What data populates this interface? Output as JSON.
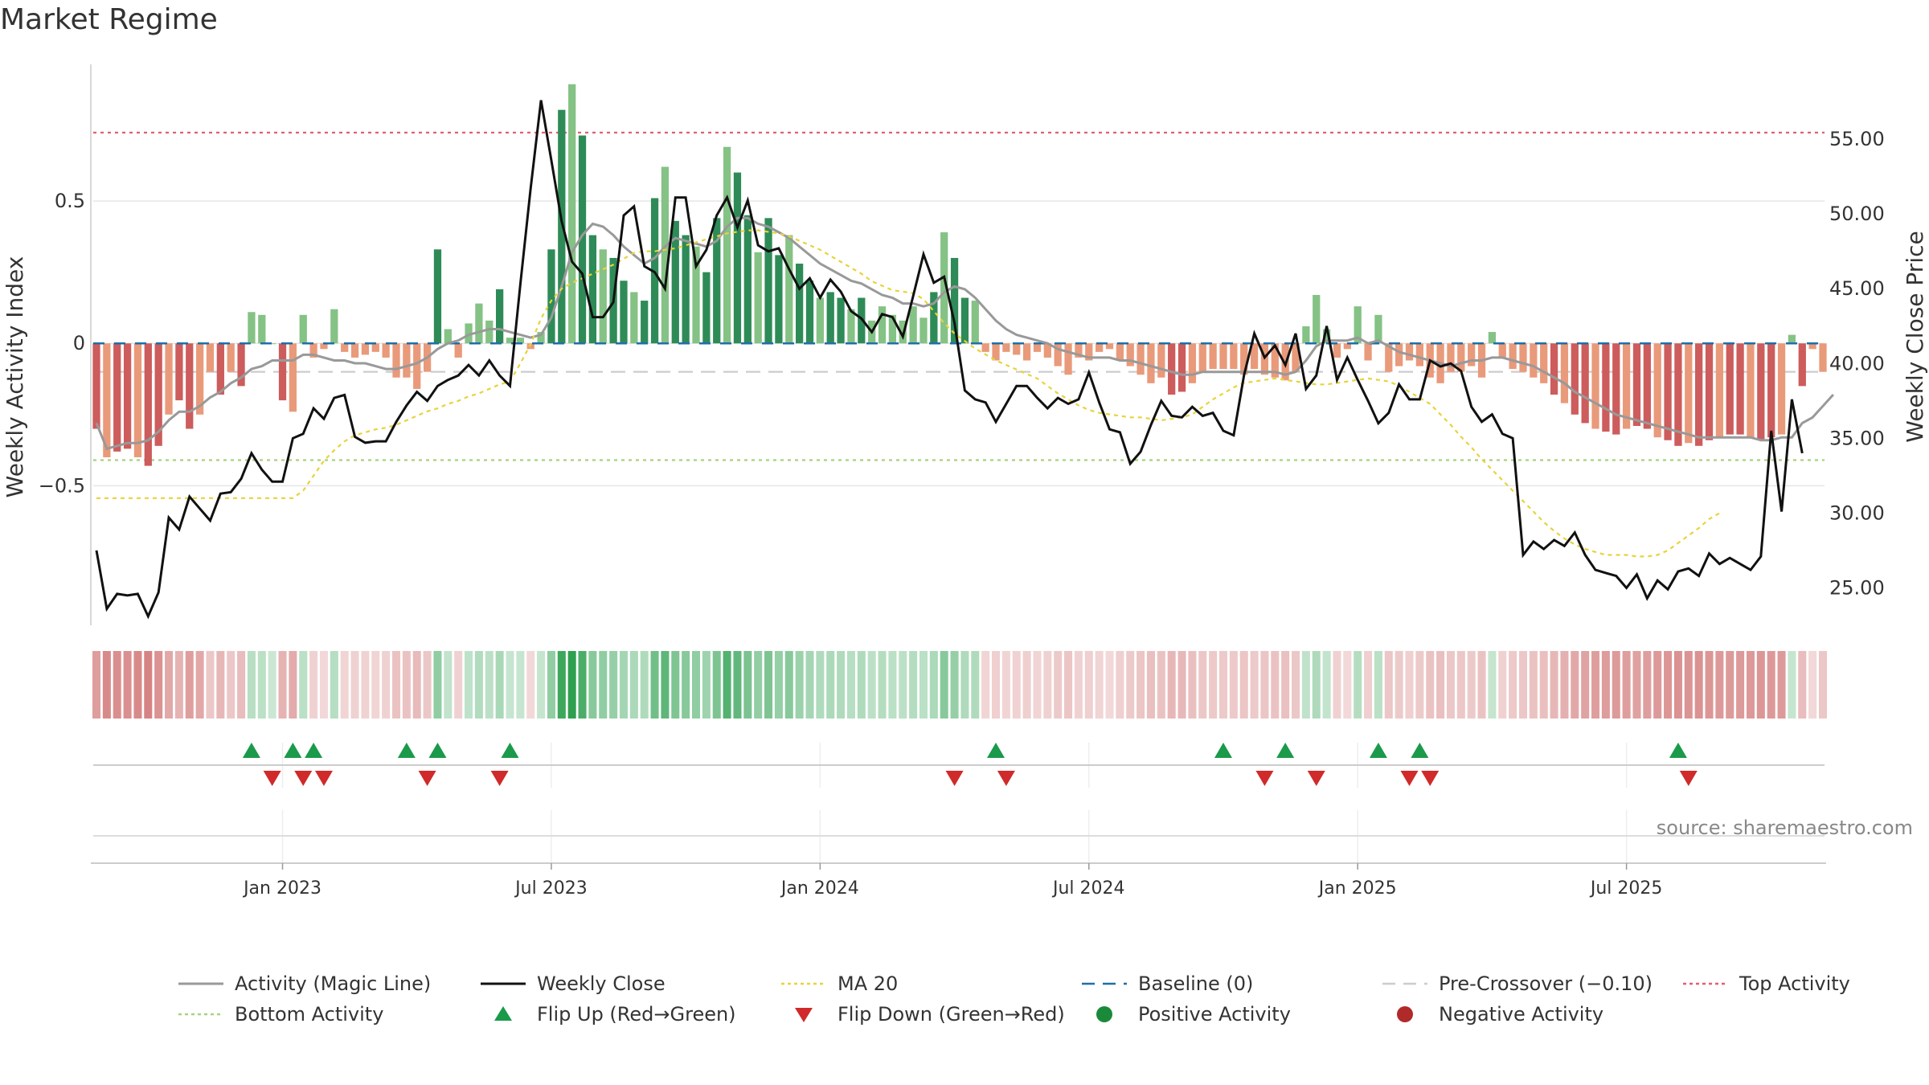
{
  "page": {
    "title": "Market Regime"
  },
  "chart_data": {
    "type": "bar",
    "title": "Market Regime",
    "source_note": "source: sharemaestro.com",
    "x_tick_labels": [
      "Jan 2023",
      "Jul 2023",
      "Jan 2024",
      "Jul 2024",
      "Jan 2025",
      "Jul 2025"
    ],
    "x_tick_weeks": [
      18,
      44,
      70,
      96,
      122,
      148
    ],
    "week_start": "2022-08-29",
    "left_axis": {
      "label": "Weekly Activity Index",
      "ticks": [
        "0.5",
        "0",
        "−0.5"
      ],
      "tick_values": [
        0.5,
        0,
        -0.5
      ],
      "range": [
        -0.99,
        0.98
      ]
    },
    "right_axis": {
      "label": "Weekly Close Price",
      "ticks": [
        "25.00",
        "30.00",
        "35.00",
        "40.00",
        "45.00",
        "50.00",
        "55.00"
      ],
      "tick_values": [
        25,
        30,
        35,
        40,
        45,
        50,
        55
      ],
      "range": [
        22.5,
        60.0
      ]
    },
    "reference_lines": {
      "baseline": 0,
      "pre_crossover": -0.1,
      "top_activity": 0.74,
      "bottom_activity": -0.41
    },
    "activity": [
      -0.3,
      -0.4,
      -0.38,
      -0.37,
      -0.4,
      -0.43,
      -0.36,
      -0.25,
      -0.2,
      -0.3,
      -0.25,
      -0.1,
      -0.18,
      -0.1,
      -0.15,
      0.11,
      0.1,
      0.0,
      -0.2,
      -0.24,
      0.1,
      -0.05,
      -0.02,
      0.12,
      -0.03,
      -0.05,
      -0.04,
      -0.03,
      -0.05,
      -0.12,
      -0.12,
      -0.16,
      -0.1,
      0.33,
      0.05,
      -0.05,
      0.07,
      0.14,
      0.08,
      0.19,
      0.02,
      0.02,
      -0.02,
      0.04,
      0.33,
      0.82,
      0.91,
      0.73,
      0.38,
      0.33,
      0.3,
      0.22,
      0.18,
      0.15,
      0.51,
      0.62,
      0.43,
      0.38,
      0.34,
      0.25,
      0.44,
      0.69,
      0.6,
      0.45,
      0.32,
      0.44,
      0.31,
      0.38,
      0.28,
      0.22,
      0.16,
      0.18,
      0.16,
      0.12,
      0.16,
      0.08,
      0.13,
      0.1,
      0.08,
      0.13,
      0.09,
      0.18,
      0.39,
      0.3,
      0.16,
      0.15,
      -0.03,
      -0.06,
      -0.03,
      -0.04,
      -0.06,
      -0.03,
      -0.05,
      -0.08,
      -0.11,
      -0.05,
      -0.06,
      -0.03,
      -0.02,
      -0.06,
      -0.08,
      -0.11,
      -0.14,
      -0.12,
      -0.18,
      -0.17,
      -0.14,
      -0.1,
      -0.09,
      -0.09,
      -0.09,
      -0.11,
      -0.09,
      -0.11,
      -0.12,
      -0.13,
      -0.1,
      0.06,
      0.17,
      0.05,
      -0.05,
      -0.02,
      0.13,
      -0.06,
      0.1,
      -0.1,
      -0.08,
      -0.06,
      -0.08,
      -0.12,
      -0.14,
      -0.1,
      -0.1,
      -0.08,
      -0.12,
      0.04,
      -0.05,
      -0.09,
      -0.1,
      -0.12,
      -0.14,
      -0.18,
      -0.21,
      -0.25,
      -0.28,
      -0.3,
      -0.31,
      -0.32,
      -0.3,
      -0.29,
      -0.3,
      -0.33,
      -0.34,
      -0.36,
      -0.35,
      -0.36,
      -0.34,
      -0.33,
      -0.32,
      -0.32,
      -0.33,
      -0.34,
      -0.33,
      -0.32,
      0.03,
      -0.15,
      -0.02,
      -0.1
    ],
    "magic_line": [
      -0.28,
      -0.37,
      -0.36,
      -0.35,
      -0.35,
      -0.34,
      -0.31,
      -0.27,
      -0.24,
      -0.24,
      -0.22,
      -0.19,
      -0.17,
      -0.14,
      -0.12,
      -0.09,
      -0.08,
      -0.06,
      -0.06,
      -0.06,
      -0.04,
      -0.04,
      -0.05,
      -0.06,
      -0.06,
      -0.07,
      -0.07,
      -0.08,
      -0.09,
      -0.09,
      -0.08,
      -0.07,
      -0.05,
      -0.02,
      0.0,
      0.01,
      0.03,
      0.04,
      0.05,
      0.05,
      0.04,
      0.03,
      0.02,
      0.03,
      0.09,
      0.2,
      0.32,
      0.38,
      0.42,
      0.41,
      0.38,
      0.34,
      0.31,
      0.28,
      0.3,
      0.34,
      0.37,
      0.36,
      0.35,
      0.34,
      0.36,
      0.41,
      0.44,
      0.44,
      0.42,
      0.41,
      0.39,
      0.37,
      0.34,
      0.31,
      0.28,
      0.26,
      0.24,
      0.22,
      0.21,
      0.19,
      0.17,
      0.16,
      0.14,
      0.14,
      0.13,
      0.14,
      0.18,
      0.2,
      0.19,
      0.16,
      0.12,
      0.08,
      0.05,
      0.03,
      0.02,
      0.01,
      0.0,
      -0.02,
      -0.03,
      -0.04,
      -0.05,
      -0.05,
      -0.05,
      -0.06,
      -0.06,
      -0.07,
      -0.08,
      -0.09,
      -0.1,
      -0.11,
      -0.11,
      -0.1,
      -0.1,
      -0.1,
      -0.1,
      -0.1,
      -0.1,
      -0.1,
      -0.1,
      -0.11,
      -0.1,
      -0.06,
      -0.01,
      0.01,
      0.01,
      0.01,
      0.02,
      0.0,
      0.01,
      -0.01,
      -0.03,
      -0.04,
      -0.05,
      -0.06,
      -0.07,
      -0.08,
      -0.07,
      -0.06,
      -0.06,
      -0.05,
      -0.05,
      -0.06,
      -0.07,
      -0.08,
      -0.1,
      -0.12,
      -0.14,
      -0.17,
      -0.19,
      -0.21,
      -0.23,
      -0.25,
      -0.26,
      -0.27,
      -0.28,
      -0.29,
      -0.3,
      -0.31,
      -0.32,
      -0.33,
      -0.33,
      -0.33,
      -0.33,
      -0.33,
      -0.33,
      -0.34,
      -0.34,
      -0.33,
      -0.33,
      -0.28,
      -0.26,
      -0.22,
      -0.18
    ],
    "weekly_close": [
      27.5,
      23.6,
      24.6,
      24.5,
      24.6,
      23.1,
      24.7,
      29.7,
      28.9,
      31.1,
      30.3,
      29.5,
      31.3,
      31.4,
      32.3,
      34.0,
      32.9,
      32.1,
      32.1,
      35.0,
      35.3,
      37.0,
      36.3,
      37.7,
      37.9,
      35.1,
      34.7,
      34.8,
      34.8,
      36.1,
      37.2,
      38.1,
      37.5,
      38.5,
      38.9,
      39.2,
      39.9,
      39.2,
      40.2,
      39.2,
      38.5,
      45.3,
      51.7,
      57.6,
      53.6,
      49.5,
      46.8,
      46.0,
      43.1,
      43.1,
      44.1,
      49.9,
      50.5,
      46.5,
      46.1,
      45.0,
      51.1,
      51.1,
      46.5,
      47.6,
      49.9,
      51.1,
      49.1,
      50.9,
      47.9,
      47.5,
      47.7,
      46.3,
      45.0,
      45.7,
      44.4,
      45.6,
      44.8,
      43.5,
      43.0,
      42.1,
      43.3,
      43.1,
      41.8,
      44.5,
      47.3,
      45.4,
      45.8,
      42.7,
      38.2,
      37.6,
      37.4,
      36.1,
      37.3,
      38.5,
      38.5,
      37.7,
      37.0,
      37.7,
      37.3,
      37.6,
      39.4,
      37.4,
      35.6,
      35.4,
      33.3,
      34.1,
      35.9,
      37.5,
      36.5,
      36.4,
      37.1,
      36.5,
      36.7,
      35.5,
      35.2,
      39.2,
      42.0,
      40.4,
      41.2,
      39.9,
      42.0,
      38.3,
      39.2,
      42.5,
      38.9,
      40.4,
      38.9,
      37.5,
      36.0,
      36.7,
      38.6,
      37.6,
      37.6,
      40.2,
      39.8,
      40.0,
      39.5,
      37.1,
      36.1,
      36.6,
      35.3,
      35.0,
      27.2,
      28.1,
      27.6,
      28.2,
      27.8,
      28.7,
      27.2,
      26.2,
      26.0,
      25.8,
      25.0,
      25.9,
      24.3,
      25.5,
      24.9,
      26.1,
      26.3,
      25.8,
      27.3,
      26.6,
      27.0,
      26.6,
      26.2,
      27.1,
      35.5,
      30.1,
      37.6,
      34.0
    ],
    "ma20": [
      31.0,
      31.0,
      31.0,
      31.0,
      31.0,
      31.0,
      31.0,
      31.0,
      31.0,
      31.0,
      31.0,
      31.0,
      31.0,
      31.0,
      31.0,
      31.0,
      31.0,
      31.0,
      31.0,
      31.0,
      31.5,
      32.5,
      33.5,
      34.2,
      34.8,
      35.2,
      35.4,
      35.6,
      35.7,
      35.9,
      36.2,
      36.5,
      36.8,
      37.0,
      37.3,
      37.5,
      37.8,
      38.0,
      38.3,
      38.6,
      38.8,
      40.0,
      41.3,
      43.0,
      44.2,
      45.0,
      45.4,
      45.7,
      46.0,
      46.3,
      46.6,
      47.0,
      47.4,
      47.5,
      47.5,
      47.6,
      47.7,
      47.9,
      48.1,
      48.3,
      48.5,
      48.7,
      48.8,
      48.9,
      48.9,
      48.8,
      48.7,
      48.5,
      48.2,
      47.9,
      47.6,
      47.2,
      46.8,
      46.4,
      46.0,
      45.5,
      45.2,
      44.9,
      44.8,
      44.7,
      44.3,
      43.5,
      42.7,
      42.0,
      41.5,
      41.0,
      40.6,
      40.2,
      39.9,
      39.6,
      39.3,
      39.0,
      38.5,
      38.0,
      37.6,
      37.2,
      36.9,
      36.7,
      36.6,
      36.5,
      36.4,
      36.4,
      36.3,
      36.2,
      36.3,
      36.4,
      36.6,
      37.1,
      37.6,
      38.0,
      38.4,
      38.7,
      38.8,
      38.9,
      39.0,
      38.9,
      38.8,
      38.7,
      38.6,
      38.6,
      38.7,
      38.8,
      38.9,
      39.0,
      38.9,
      38.8,
      38.5,
      38.1,
      37.7,
      37.3,
      36.6,
      35.9,
      35.1,
      34.4,
      33.6,
      32.9,
      32.2,
      31.5,
      30.8,
      30.1,
      29.4,
      28.8,
      28.3,
      27.9,
      27.6,
      27.4,
      27.2,
      27.2,
      27.2,
      27.1,
      27.1,
      27.2,
      27.5,
      28.0,
      28.5,
      29.0,
      29.6,
      30.0
    ],
    "flip_up_weeks": [
      15,
      19,
      21,
      30,
      33,
      40,
      87,
      109,
      115,
      124,
      128,
      153
    ],
    "flip_down_weeks": [
      17,
      20,
      22,
      32,
      39,
      83,
      88,
      113,
      118,
      127,
      129,
      154
    ],
    "legend": [
      {
        "label": "Activity (Magic Line)",
        "symbol": "line",
        "color": "#999999"
      },
      {
        "label": "Weekly Close",
        "symbol": "line",
        "color": "#111111"
      },
      {
        "label": "MA 20",
        "symbol": "dotted",
        "color": "#e8d33a"
      },
      {
        "label": "Baseline (0)",
        "symbol": "dashed",
        "color": "#1f6fa8"
      },
      {
        "label": "Pre-Crossover (−0.10)",
        "symbol": "dashed",
        "color": "#cccccc"
      },
      {
        "label": "Top Activity",
        "symbol": "dotted",
        "color": "#e06070"
      },
      {
        "label": "Bottom Activity",
        "symbol": "dotted",
        "color": "#a8d27c"
      },
      {
        "label": "Flip Up (Red→Green)",
        "symbol": "tri-up",
        "color": "#1a9a4a"
      },
      {
        "label": "Flip Down (Green→Red)",
        "symbol": "tri-down",
        "color": "#d02a2a"
      },
      {
        "label": "Positive Activity",
        "symbol": "dot",
        "color": "#1a8a3a"
      },
      {
        "label": "Negative Activity",
        "symbol": "dot",
        "color": "#b02a2a"
      }
    ],
    "colors": {
      "pos_strong": "#2e8b57",
      "pos_light": "#85c285",
      "neg_strong": "#cd5c5c",
      "neg_light": "#e99a7a",
      "flip_up": "#1a9a4a",
      "flip_down": "#d02a2a",
      "grid": "#e6e6e6",
      "axis_text": "#333333",
      "source": "#888888"
    }
  }
}
